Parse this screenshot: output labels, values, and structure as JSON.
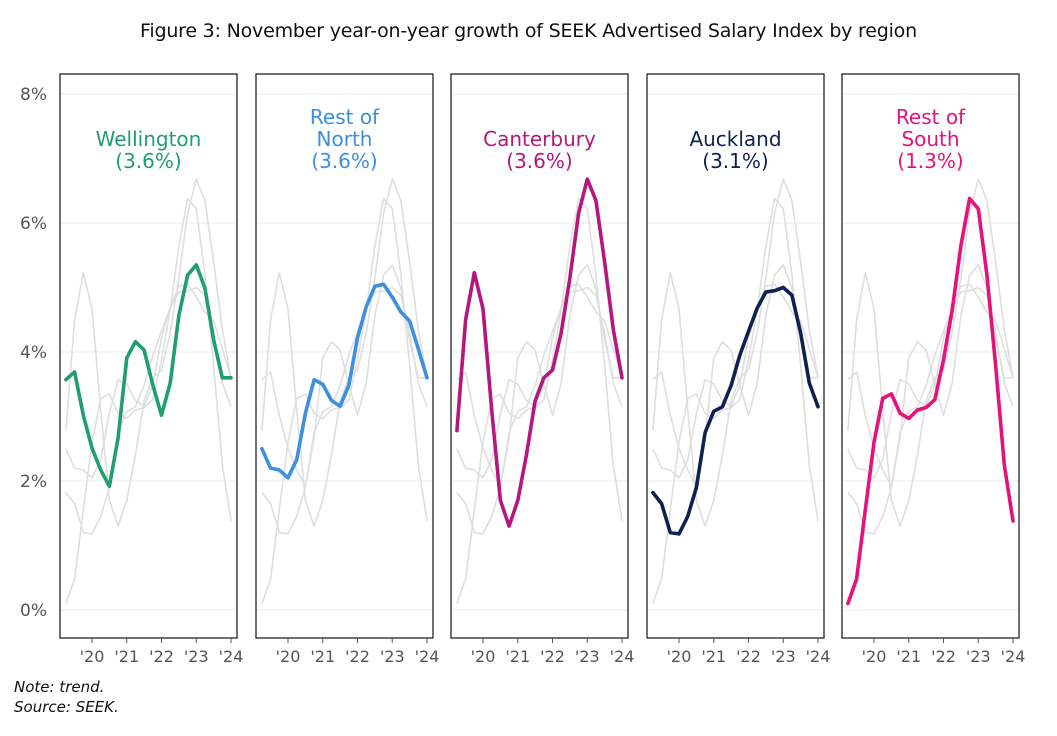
{
  "chart_data": {
    "type": "line",
    "title": "Figure 3: November year-on-year growth of SEEK Advertised Salary Index by region",
    "xlabel": "",
    "ylabel": "",
    "ylim": [
      0,
      8
    ],
    "yticks": [
      0,
      2,
      4,
      6,
      8
    ],
    "ytick_labels": [
      "0%",
      "2%",
      "4%",
      "6%",
      "8%"
    ],
    "xlim": [
      2019.0,
      2024.15
    ],
    "xticks": [
      2020,
      2021,
      2022,
      2023,
      2024
    ],
    "xtick_labels": [
      "'20",
      "'21",
      "'22",
      "'23",
      "'24"
    ],
    "grid": true,
    "legend": "none (labels inside panels)",
    "x": [
      2019.25,
      2019.5,
      2019.75,
      2020.0,
      2020.25,
      2020.5,
      2020.75,
      2021.0,
      2021.25,
      2021.5,
      2021.75,
      2022.0,
      2022.25,
      2022.5,
      2022.75,
      2023.0,
      2023.25,
      2023.5,
      2023.75,
      2024.0
    ],
    "background_series_color": "#dedede",
    "series": [
      {
        "name": "Wellington",
        "label_lines": [
          "Wellington",
          "(3.6%)"
        ],
        "latest": "3.6%",
        "color": "#1f9e6e",
        "values": [
          3.57,
          3.69,
          3.02,
          2.51,
          2.17,
          1.92,
          2.67,
          3.91,
          4.16,
          4.03,
          3.49,
          3.02,
          3.52,
          4.57,
          5.19,
          5.35,
          4.99,
          4.19,
          3.6,
          3.6
        ]
      },
      {
        "name": "Rest of North",
        "label_lines": [
          "Rest of",
          "North",
          "(3.6%)"
        ],
        "latest": "3.6%",
        "color": "#3d8fe0",
        "values": [
          2.5,
          2.2,
          2.17,
          2.05,
          2.33,
          3.05,
          3.57,
          3.5,
          3.25,
          3.16,
          3.48,
          4.22,
          4.7,
          5.02,
          5.05,
          4.85,
          4.62,
          4.48,
          4.05,
          3.6
        ]
      },
      {
        "name": "Canterbury",
        "label_lines": [
          "Canterbury",
          "(3.6%)"
        ],
        "latest": "3.6%",
        "color": "#b5177f",
        "values": [
          2.78,
          4.5,
          5.23,
          4.67,
          3.1,
          1.7,
          1.3,
          1.7,
          2.4,
          3.24,
          3.6,
          3.72,
          4.3,
          5.15,
          6.15,
          6.68,
          6.35,
          5.4,
          4.35,
          3.6
        ]
      },
      {
        "name": "Auckland",
        "label_lines": [
          "Auckland",
          "(3.1%)"
        ],
        "latest": "3.1%",
        "color": "#0f2150",
        "values": [
          1.82,
          1.65,
          1.2,
          1.18,
          1.45,
          1.9,
          2.75,
          3.08,
          3.15,
          3.48,
          3.95,
          4.32,
          4.68,
          4.93,
          4.95,
          5.0,
          4.88,
          4.3,
          3.52,
          3.15
        ]
      },
      {
        "name": "Rest of South",
        "label_lines": [
          "Rest of",
          "South",
          "(1.3%)"
        ],
        "latest": "1.3%",
        "color": "#e5127b",
        "values": [
          0.1,
          0.48,
          1.55,
          2.6,
          3.28,
          3.35,
          3.05,
          2.97,
          3.1,
          3.14,
          3.26,
          3.88,
          4.65,
          5.65,
          6.38,
          6.22,
          5.2,
          3.8,
          2.25,
          1.38
        ]
      }
    ]
  },
  "footer": {
    "note": "Note: trend.",
    "source": "Source: SEEK."
  }
}
